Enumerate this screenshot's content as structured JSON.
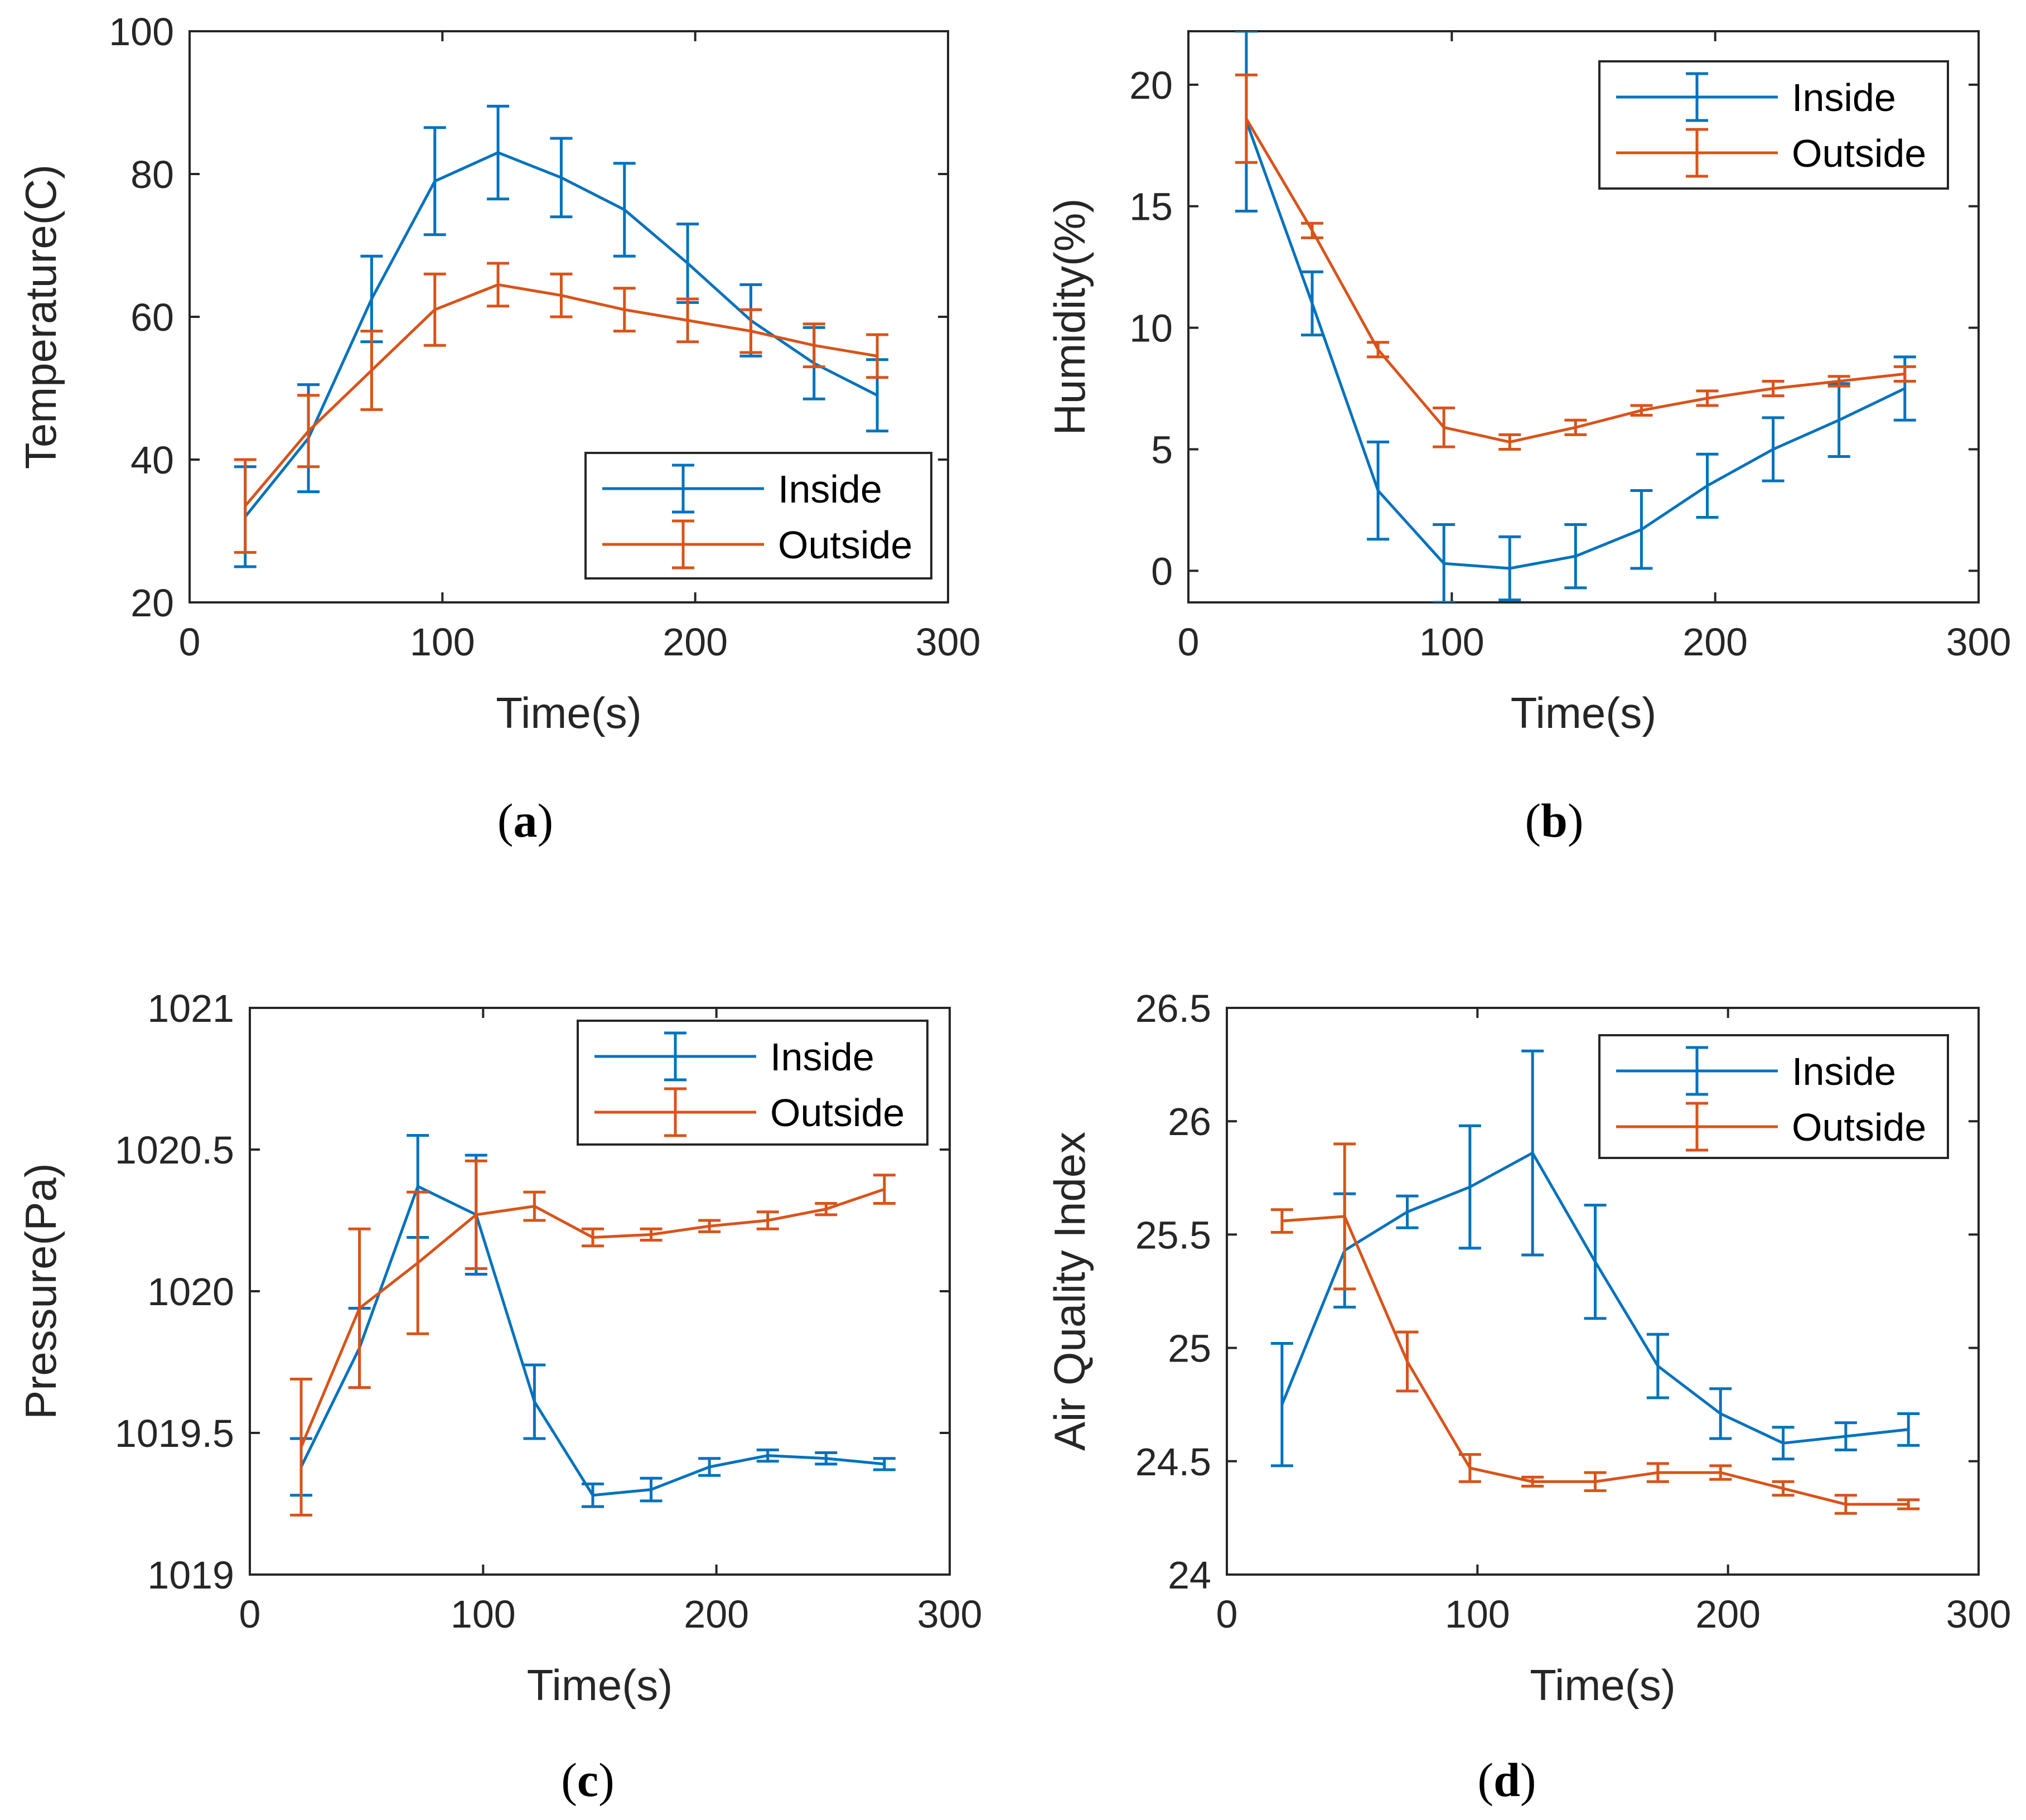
{
  "colors": {
    "inside": "#0072BD",
    "outside": "#D95319"
  },
  "legend_labels": [
    "Inside",
    "Outside"
  ],
  "chart_data": [
    {
      "type": "line",
      "caption_open": "(",
      "caption_letter": "a",
      "caption_close": ")",
      "xlabel": "Time(s)",
      "ylabel": "Temperature(C)",
      "xlim": [
        0,
        300
      ],
      "ylim": [
        20,
        100
      ],
      "xticks": [
        0,
        100,
        200,
        300
      ],
      "yticks": [
        20,
        40,
        60,
        80,
        100
      ],
      "legend_position": "bottom-right",
      "x": [
        22,
        47,
        72,
        97,
        122,
        147,
        172,
        197,
        222,
        247,
        272
      ],
      "series": [
        {
          "name": "Inside",
          "values": [
            32,
            43,
            62.5,
            79,
            83,
            79.5,
            75,
            67.5,
            59.5,
            53.5,
            49
          ],
          "errors": [
            7,
            7.5,
            6,
            7.5,
            6.5,
            5.5,
            6.5,
            5.5,
            5,
            5,
            5
          ]
        },
        {
          "name": "Outside",
          "values": [
            33.5,
            44,
            52.5,
            61,
            64.5,
            63,
            61,
            59.5,
            58,
            56,
            54.5
          ],
          "errors": [
            6.5,
            5,
            5.5,
            5,
            3,
            3,
            3,
            3,
            3,
            3,
            3
          ]
        }
      ]
    },
    {
      "type": "line",
      "caption_open": "(",
      "caption_letter": "b",
      "caption_close": ")",
      "xlabel": "Time(s)",
      "ylabel": "Humidity(%)",
      "xlim": [
        0,
        300
      ],
      "ylim": [
        -1.3,
        22.2
      ],
      "xticks": [
        0,
        100,
        200,
        300
      ],
      "yticks": [
        0,
        5,
        10,
        15,
        20
      ],
      "legend_position": "top-right",
      "x": [
        22,
        47,
        72,
        97,
        122,
        147,
        172,
        197,
        222,
        247,
        272
      ],
      "series": [
        {
          "name": "Inside",
          "values": [
            18.5,
            11,
            3.3,
            0.3,
            0.1,
            0.6,
            1.7,
            3.5,
            5,
            6.2,
            7.5
          ],
          "errors": [
            3.7,
            1.3,
            2,
            1.6,
            1.3,
            1.3,
            1.6,
            1.3,
            1.3,
            1.5,
            1.3
          ]
        },
        {
          "name": "Outside",
          "values": [
            18.6,
            14,
            9.1,
            5.9,
            5.3,
            5.9,
            6.6,
            7.1,
            7.5,
            7.8,
            8.1
          ],
          "errors": [
            1.8,
            0.3,
            0.3,
            0.8,
            0.3,
            0.3,
            0.2,
            0.3,
            0.3,
            0.2,
            0.3
          ]
        }
      ]
    },
    {
      "type": "line",
      "caption_open": "(",
      "caption_letter": "c",
      "caption_close": ")",
      "xlabel": "Time(s)",
      "ylabel": "Pressure(Pa)",
      "xlim": [
        0,
        300
      ],
      "ylim": [
        1019,
        1021
      ],
      "xticks": [
        0,
        100,
        200,
        300
      ],
      "yticks": [
        1019,
        1019.5,
        1020,
        1020.5,
        1021
      ],
      "legend_position": "top-right",
      "x": [
        22,
        47,
        72,
        97,
        122,
        147,
        172,
        197,
        222,
        247,
        272
      ],
      "series": [
        {
          "name": "Inside",
          "values": [
            1019.38,
            1019.8,
            1020.37,
            1020.27,
            1019.61,
            1019.28,
            1019.3,
            1019.38,
            1019.42,
            1019.41,
            1019.39
          ],
          "errors": [
            0.1,
            0.14,
            0.18,
            0.21,
            0.13,
            0.04,
            0.04,
            0.03,
            0.02,
            0.02,
            0.02
          ]
        },
        {
          "name": "Outside",
          "values": [
            1019.45,
            1019.94,
            1020.1,
            1020.27,
            1020.3,
            1020.19,
            1020.2,
            1020.23,
            1020.25,
            1020.29,
            1020.36
          ],
          "errors": [
            0.24,
            0.28,
            0.25,
            0.19,
            0.05,
            0.03,
            0.02,
            0.02,
            0.03,
            0.02,
            0.05
          ]
        }
      ]
    },
    {
      "type": "line",
      "caption_open": "(",
      "caption_letter": "d",
      "caption_close": ")",
      "xlabel": "Time(s)",
      "ylabel": "Air Quality Index",
      "xlim": [
        0,
        300
      ],
      "ylim": [
        24,
        26.5
      ],
      "xticks": [
        0,
        100,
        200,
        300
      ],
      "yticks": [
        24,
        24.5,
        25,
        25.5,
        26,
        26.5
      ],
      "legend_position": "top-right",
      "x": [
        22,
        47,
        72,
        97,
        122,
        147,
        172,
        197,
        222,
        247,
        272
      ],
      "series": [
        {
          "name": "Inside",
          "values": [
            24.75,
            25.43,
            25.6,
            25.71,
            25.86,
            25.38,
            24.92,
            24.71,
            24.58,
            24.61,
            24.64
          ],
          "errors": [
            0.27,
            0.25,
            0.07,
            0.27,
            0.45,
            0.25,
            0.14,
            0.11,
            0.07,
            0.06,
            0.07
          ]
        },
        {
          "name": "Outside",
          "values": [
            25.56,
            25.58,
            24.94,
            24.47,
            24.41,
            24.41,
            24.45,
            24.45,
            24.38,
            24.31,
            24.31
          ],
          "errors": [
            0.05,
            0.32,
            0.13,
            0.06,
            0.02,
            0.04,
            0.04,
            0.03,
            0.03,
            0.04,
            0.02
          ]
        }
      ]
    }
  ]
}
